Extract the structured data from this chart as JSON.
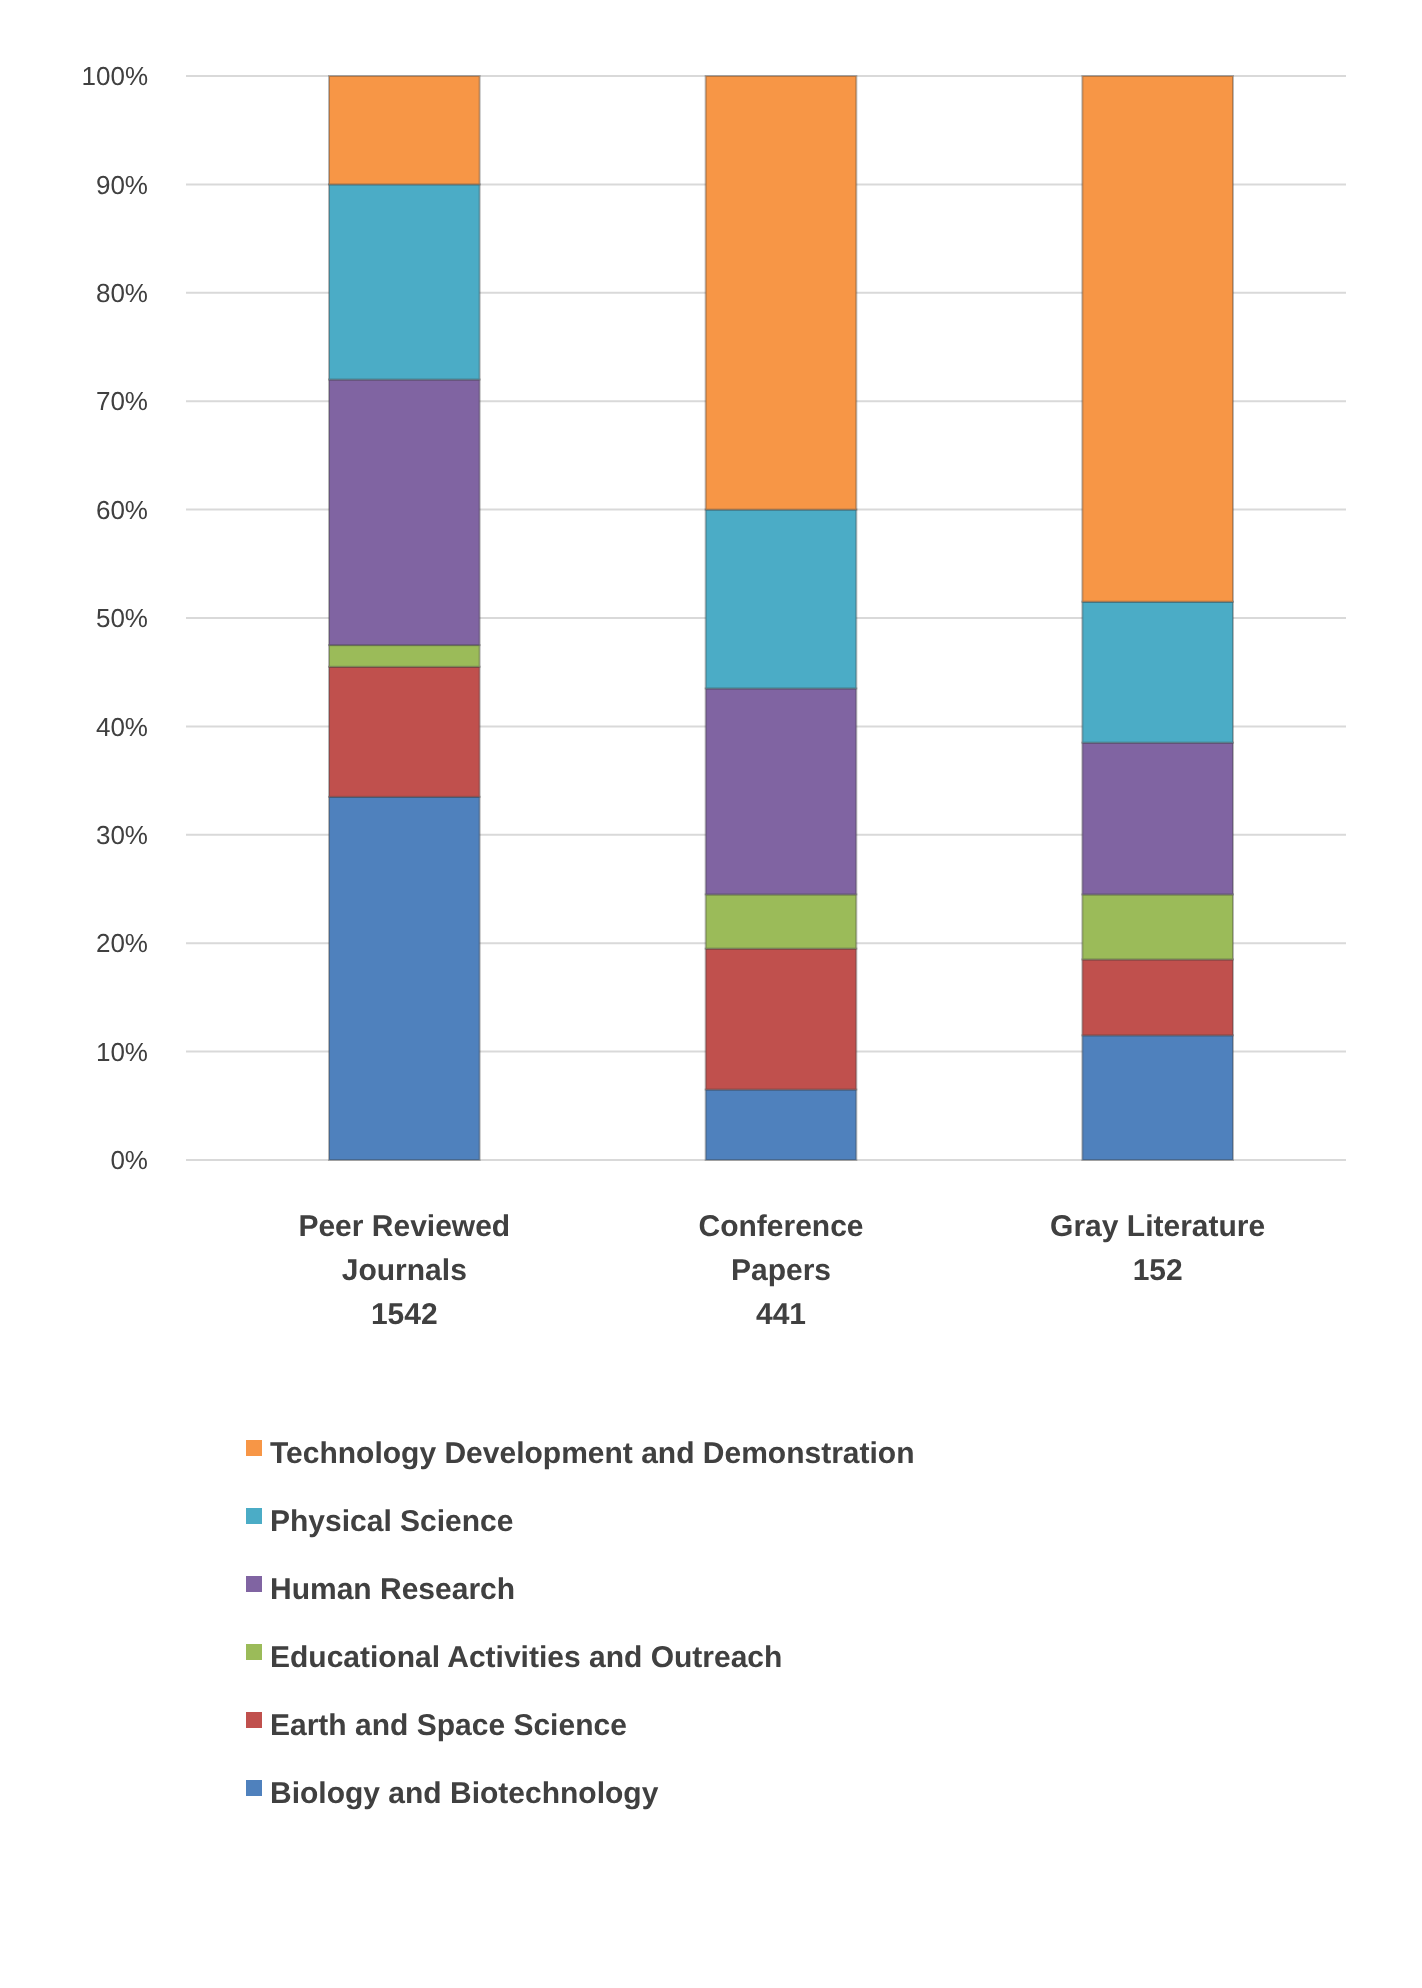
{
  "chart_data": {
    "type": "bar",
    "stacked": true,
    "categories": [
      "Peer Reviewed\nJournals\n1542",
      "Conference\nPapers\n441",
      "Gray Literature\n152"
    ],
    "series": [
      {
        "name": "Biology and Biotechnology",
        "color": "#4f81bd",
        "values": [
          33.5,
          6.5,
          11.5
        ]
      },
      {
        "name": "Earth and Space Science",
        "color": "#c0504d",
        "values": [
          12,
          13,
          7
        ]
      },
      {
        "name": "Educational Activities and Outreach",
        "color": "#9bbb59",
        "values": [
          2,
          5,
          6
        ]
      },
      {
        "name": "Human Research",
        "color": "#8064a2",
        "values": [
          24.5,
          19,
          14
        ]
      },
      {
        "name": "Physical Science",
        "color": "#4bacc6",
        "values": [
          18,
          16.5,
          13
        ]
      },
      {
        "name": "Technology Development and Demonstration",
        "color": "#f79646",
        "values": [
          10,
          40,
          48.5
        ]
      }
    ],
    "ylim": [
      0,
      100
    ],
    "yticks": [
      {
        "value": 0,
        "label": "0%"
      },
      {
        "value": 10,
        "label": "10%"
      },
      {
        "value": 20,
        "label": "20%"
      },
      {
        "value": 30,
        "label": "30%"
      },
      {
        "value": 40,
        "label": "40%"
      },
      {
        "value": 50,
        "label": "50%"
      },
      {
        "value": 60,
        "label": "60%"
      },
      {
        "value": 70,
        "label": "70%"
      },
      {
        "value": 80,
        "label": "80%"
      },
      {
        "value": 90,
        "label": "90%"
      },
      {
        "value": 100,
        "label": "100%"
      }
    ],
    "grid": "y",
    "legend": "bottom"
  }
}
